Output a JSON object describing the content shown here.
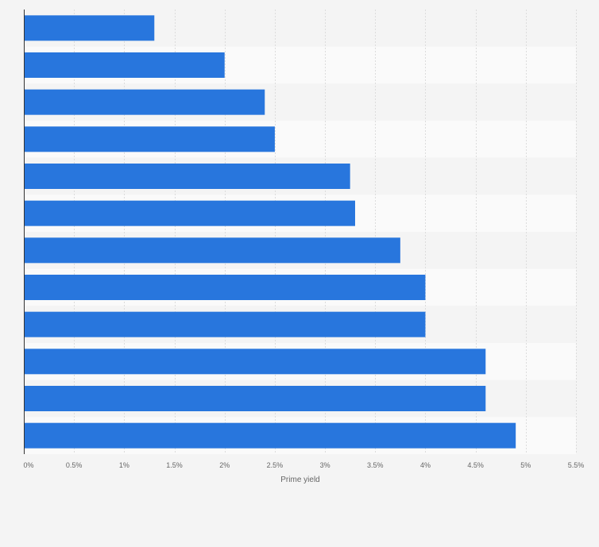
{
  "chart_data": {
    "type": "bar",
    "orientation": "horizontal",
    "categories": [
      "",
      "",
      "",
      "",
      "",
      "",
      "",
      "",
      "",
      "",
      "",
      ""
    ],
    "values": [
      1.3,
      2.0,
      2.4,
      2.5,
      3.25,
      3.3,
      3.75,
      4.0,
      4.0,
      4.6,
      4.6,
      4.9
    ],
    "xlabel": "Prime yield",
    "xlim": [
      0,
      5.5
    ],
    "xticks": [
      0,
      0.5,
      1,
      1.5,
      2,
      2.5,
      3,
      3.5,
      4,
      4.5,
      5,
      5.5
    ],
    "xtick_labels": [
      "0%",
      "0.5%",
      "1%",
      "1.5%",
      "2%",
      "2.5%",
      "3%",
      "3.5%",
      "4%",
      "4.5%",
      "5%",
      "5.5%"
    ],
    "grid": "vertical",
    "bar_color": "#2876dd",
    "band_colors": [
      "#f4f4f4",
      "#fafafa"
    ],
    "gridline_color": "#dcdcdc"
  }
}
